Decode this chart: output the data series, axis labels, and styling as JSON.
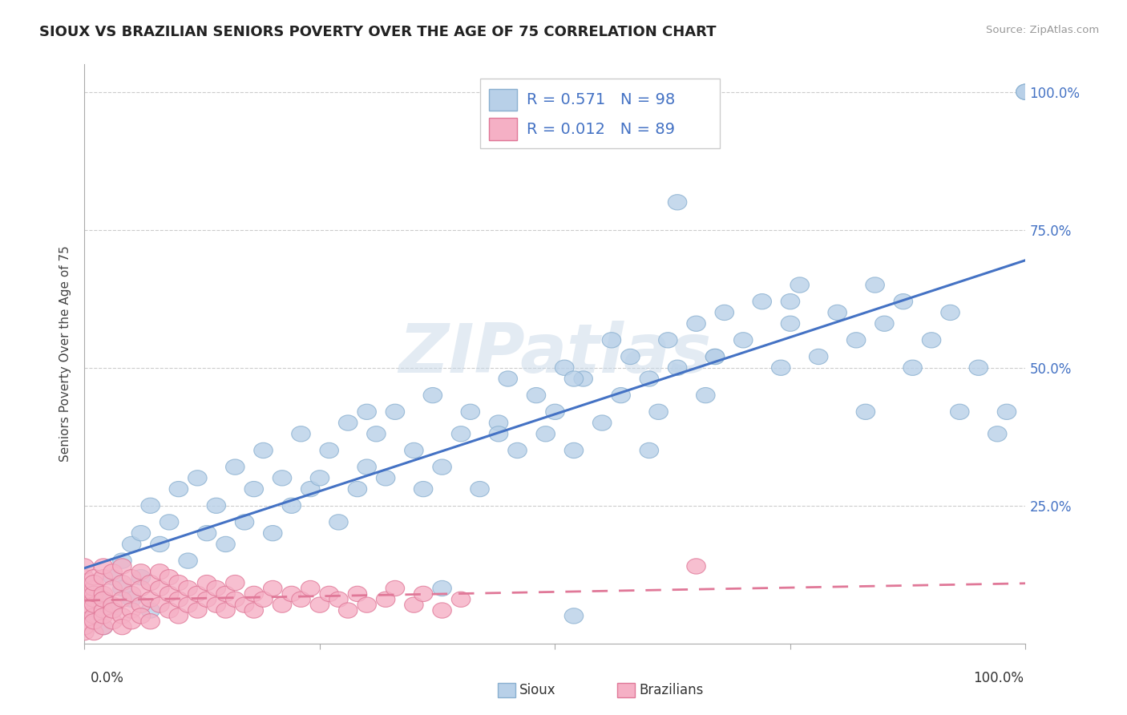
{
  "title": "SIOUX VS BRAZILIAN SENIORS POVERTY OVER THE AGE OF 75 CORRELATION CHART",
  "source": "Source: ZipAtlas.com",
  "ylabel": "Seniors Poverty Over the Age of 75",
  "watermark": "ZIPatlas",
  "legend_r1": "R = 0.571",
  "legend_n1": "N = 98",
  "legend_r2": "R = 0.012",
  "legend_n2": "N = 89",
  "color_sioux_fill": "#b8d0e8",
  "color_sioux_edge": "#8ab0d0",
  "color_brazil_fill": "#f5b0c5",
  "color_brazil_edge": "#e07898",
  "color_trend_sioux": "#4472c4",
  "color_trend_brazil": "#e07898",
  "color_grid": "#cccccc",
  "color_text_blue": "#4472c4",
  "color_title": "#222222",
  "color_source": "#999999",
  "color_legend_r": "#4472c4",
  "color_legend_n": "#4472c4",
  "background": "#ffffff",
  "sioux_x": [
    0.01,
    0.02,
    0.02,
    0.03,
    0.03,
    0.04,
    0.04,
    0.05,
    0.05,
    0.06,
    0.06,
    0.07,
    0.07,
    0.08,
    0.09,
    0.1,
    0.11,
    0.12,
    0.13,
    0.14,
    0.15,
    0.16,
    0.17,
    0.18,
    0.19,
    0.2,
    0.21,
    0.22,
    0.23,
    0.24,
    0.25,
    0.26,
    0.27,
    0.28,
    0.29,
    0.3,
    0.31,
    0.32,
    0.33,
    0.35,
    0.36,
    0.37,
    0.38,
    0.4,
    0.41,
    0.42,
    0.44,
    0.45,
    0.46,
    0.48,
    0.49,
    0.5,
    0.51,
    0.52,
    0.53,
    0.55,
    0.56,
    0.57,
    0.58,
    0.6,
    0.61,
    0.62,
    0.63,
    0.65,
    0.66,
    0.67,
    0.68,
    0.7,
    0.72,
    0.74,
    0.75,
    0.76,
    0.78,
    0.8,
    0.82,
    0.84,
    0.85,
    0.87,
    0.88,
    0.9,
    0.92,
    0.93,
    0.95,
    0.97,
    0.98,
    1.0,
    1.0,
    1.0,
    0.3,
    0.38,
    0.44,
    0.52,
    0.6,
    0.67,
    0.75,
    0.83,
    0.52,
    0.63
  ],
  "sioux_y": [
    0.05,
    0.08,
    0.03,
    0.12,
    0.06,
    0.1,
    0.15,
    0.08,
    0.18,
    0.12,
    0.2,
    0.06,
    0.25,
    0.18,
    0.22,
    0.28,
    0.15,
    0.3,
    0.2,
    0.25,
    0.18,
    0.32,
    0.22,
    0.28,
    0.35,
    0.2,
    0.3,
    0.25,
    0.38,
    0.28,
    0.3,
    0.35,
    0.22,
    0.4,
    0.28,
    0.32,
    0.38,
    0.3,
    0.42,
    0.35,
    0.28,
    0.45,
    0.32,
    0.38,
    0.42,
    0.28,
    0.4,
    0.48,
    0.35,
    0.45,
    0.38,
    0.42,
    0.5,
    0.35,
    0.48,
    0.4,
    0.55,
    0.45,
    0.52,
    0.48,
    0.42,
    0.55,
    0.5,
    0.58,
    0.45,
    0.52,
    0.6,
    0.55,
    0.62,
    0.5,
    0.58,
    0.65,
    0.52,
    0.6,
    0.55,
    0.65,
    0.58,
    0.62,
    0.5,
    0.55,
    0.6,
    0.42,
    0.5,
    0.38,
    0.42,
    1.0,
    1.0,
    1.0,
    0.42,
    0.1,
    0.38,
    0.48,
    0.35,
    0.52,
    0.62,
    0.42,
    0.05,
    0.8
  ],
  "brazil_x": [
    0.0,
    0.0,
    0.0,
    0.0,
    0.0,
    0.0,
    0.0,
    0.0,
    0.0,
    0.01,
    0.01,
    0.01,
    0.01,
    0.01,
    0.01,
    0.01,
    0.01,
    0.01,
    0.02,
    0.02,
    0.02,
    0.02,
    0.02,
    0.02,
    0.02,
    0.03,
    0.03,
    0.03,
    0.03,
    0.03,
    0.04,
    0.04,
    0.04,
    0.04,
    0.04,
    0.05,
    0.05,
    0.05,
    0.05,
    0.06,
    0.06,
    0.06,
    0.06,
    0.07,
    0.07,
    0.07,
    0.08,
    0.08,
    0.08,
    0.09,
    0.09,
    0.09,
    0.1,
    0.1,
    0.1,
    0.11,
    0.11,
    0.12,
    0.12,
    0.13,
    0.13,
    0.14,
    0.14,
    0.15,
    0.15,
    0.16,
    0.16,
    0.17,
    0.18,
    0.18,
    0.19,
    0.2,
    0.21,
    0.22,
    0.23,
    0.24,
    0.25,
    0.26,
    0.27,
    0.28,
    0.29,
    0.3,
    0.32,
    0.33,
    0.35,
    0.36,
    0.38,
    0.4,
    0.65
  ],
  "brazil_y": [
    0.02,
    0.04,
    0.06,
    0.08,
    0.1,
    0.12,
    0.14,
    0.03,
    0.07,
    0.02,
    0.05,
    0.08,
    0.1,
    0.12,
    0.04,
    0.07,
    0.09,
    0.11,
    0.03,
    0.06,
    0.09,
    0.12,
    0.14,
    0.05,
    0.08,
    0.04,
    0.07,
    0.1,
    0.13,
    0.06,
    0.05,
    0.08,
    0.11,
    0.14,
    0.03,
    0.06,
    0.09,
    0.12,
    0.04,
    0.07,
    0.1,
    0.13,
    0.05,
    0.08,
    0.11,
    0.04,
    0.07,
    0.1,
    0.13,
    0.06,
    0.09,
    0.12,
    0.05,
    0.08,
    0.11,
    0.07,
    0.1,
    0.06,
    0.09,
    0.08,
    0.11,
    0.07,
    0.1,
    0.06,
    0.09,
    0.08,
    0.11,
    0.07,
    0.09,
    0.06,
    0.08,
    0.1,
    0.07,
    0.09,
    0.08,
    0.1,
    0.07,
    0.09,
    0.08,
    0.06,
    0.09,
    0.07,
    0.08,
    0.1,
    0.07,
    0.09,
    0.06,
    0.08,
    0.14
  ],
  "xlim": [
    0.0,
    1.0
  ],
  "ylim": [
    0.0,
    1.05
  ],
  "ytick_positions": [
    0.25,
    0.5,
    0.75,
    1.0
  ],
  "ytick_labels": [
    "25.0%",
    "50.0%",
    "75.0%",
    "100.0%"
  ],
  "xtick_label_left": "0.0%",
  "xtick_label_right": "100.0%",
  "legend_label_sioux": "Sioux",
  "legend_label_brazil": "Brazilians"
}
